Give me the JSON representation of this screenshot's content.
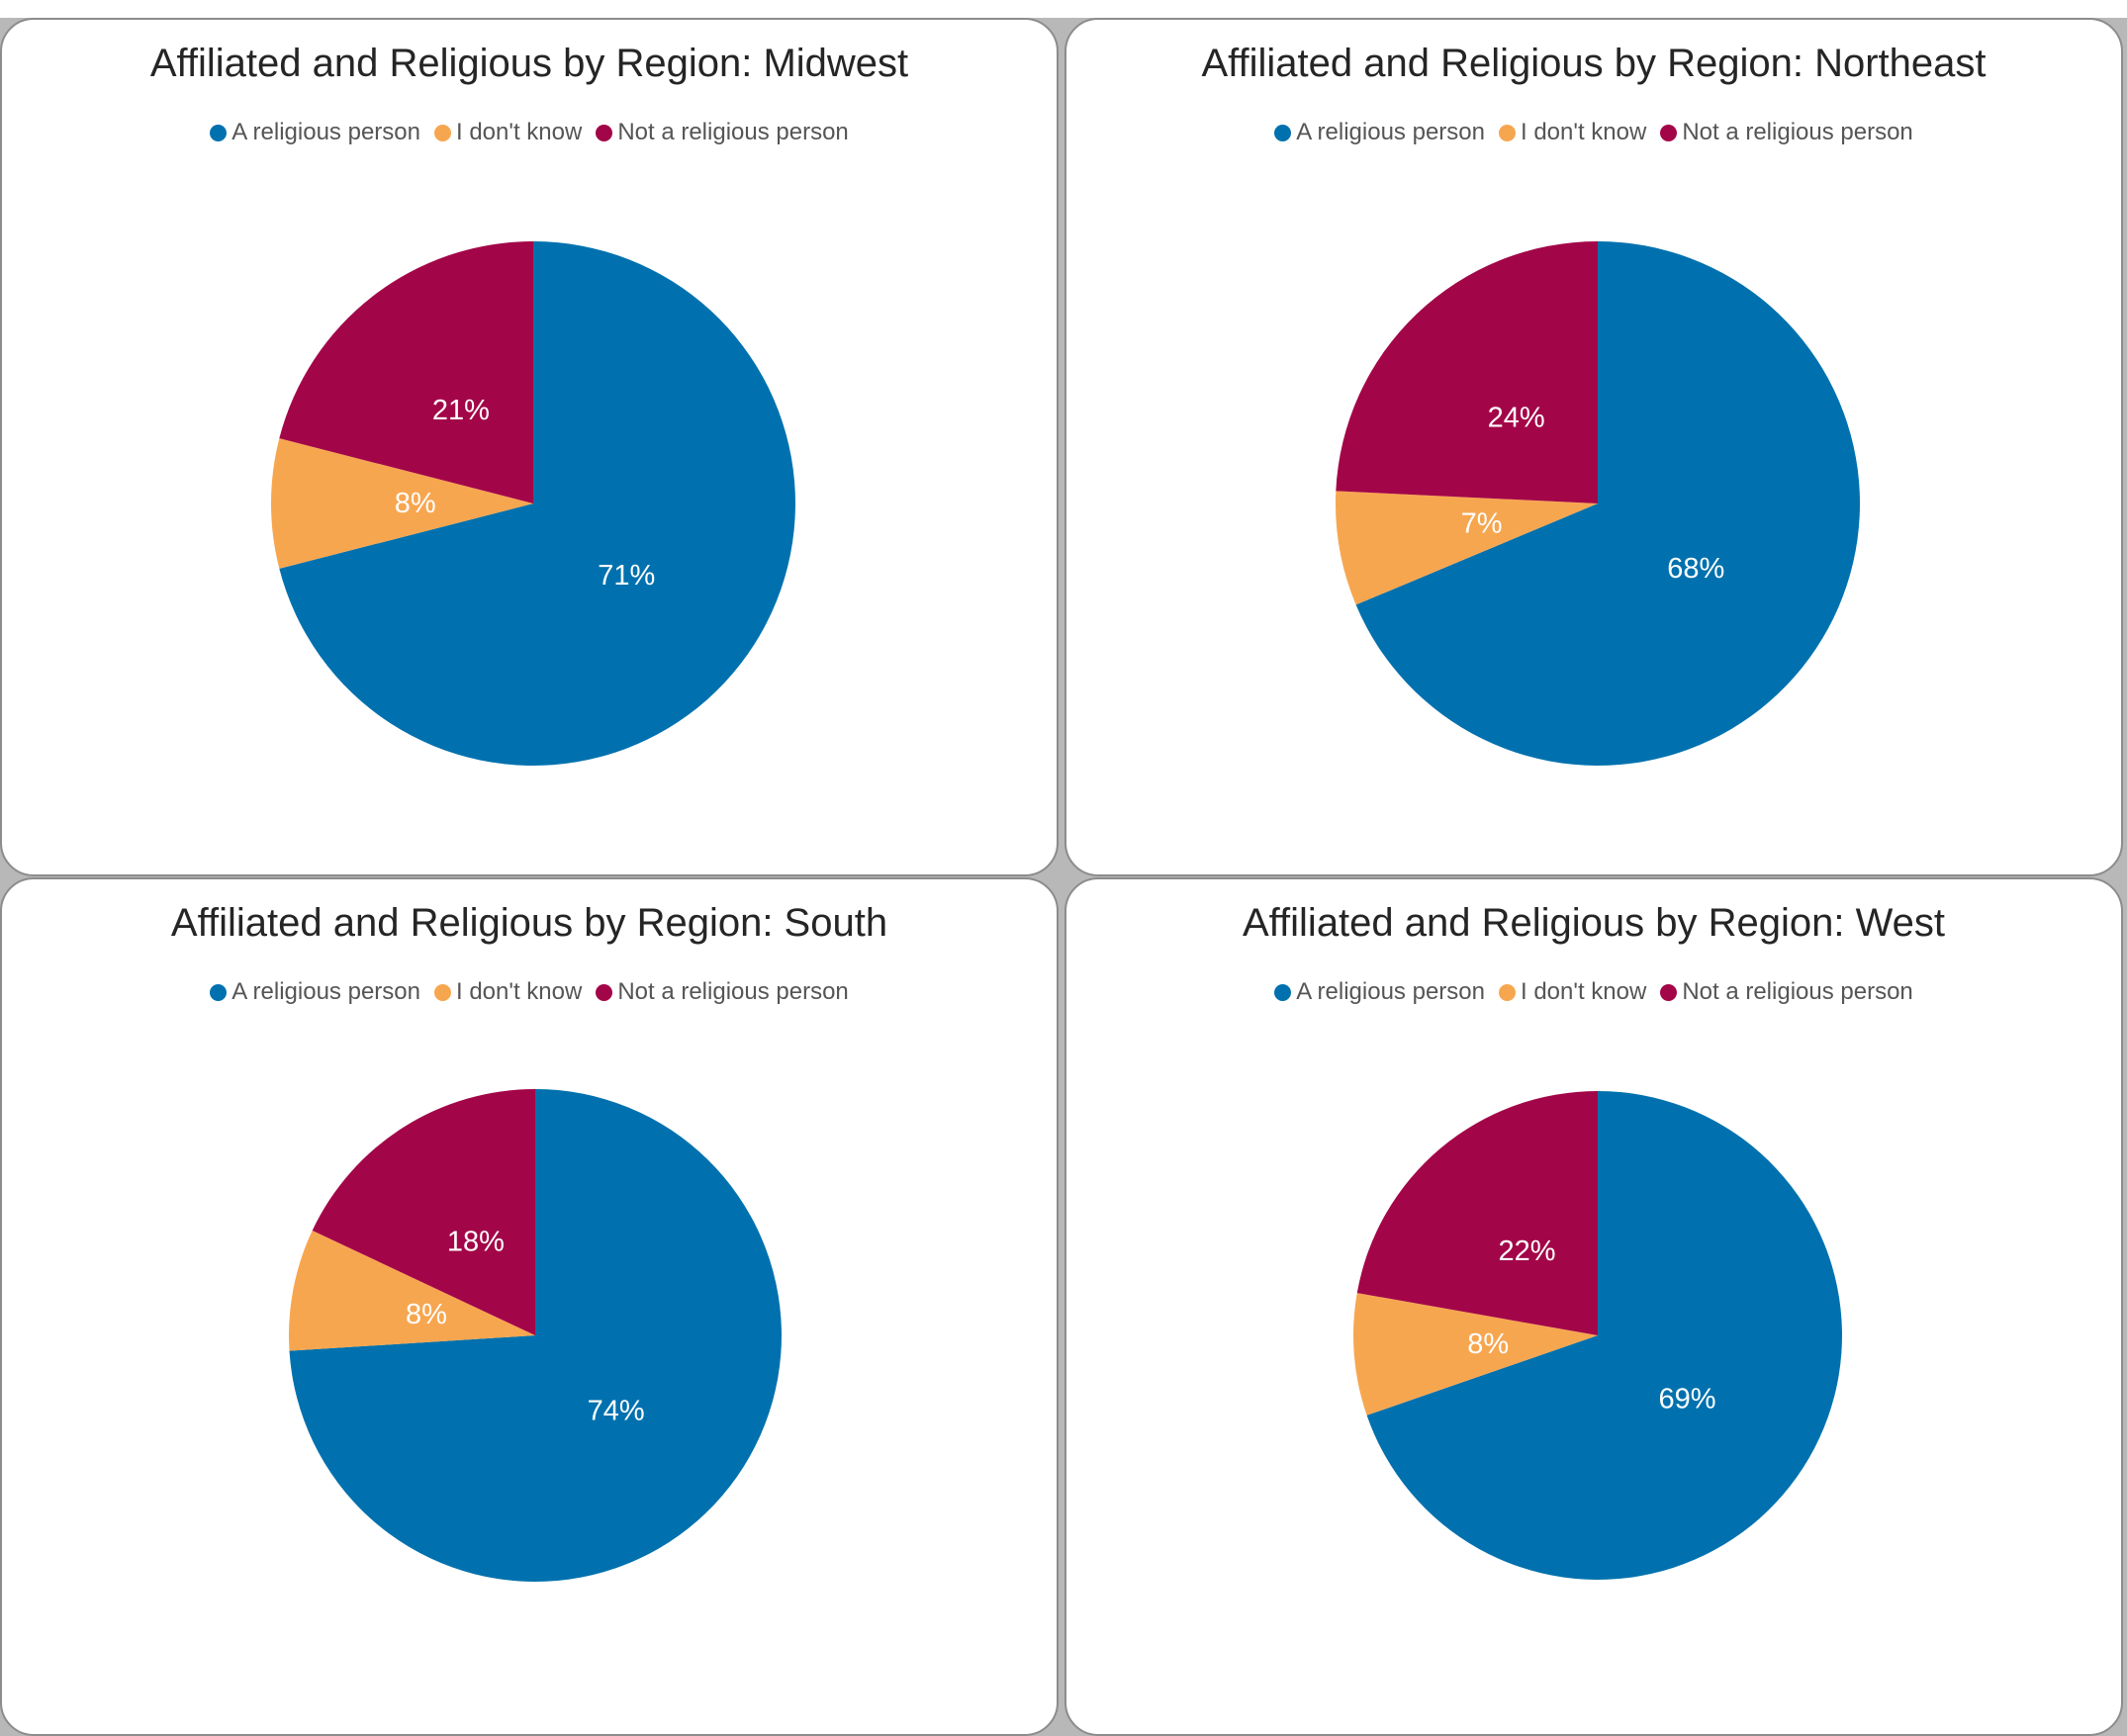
{
  "legend_items": [
    {
      "label": "A religious person",
      "color": "#0071ae"
    },
    {
      "label": "I don't know",
      "color": "#f7a650"
    },
    {
      "label": "Not a religious person",
      "color": "#a30648"
    }
  ],
  "chart_data": [
    {
      "type": "pie",
      "title": "Affiliated and Religious by Region: Midwest",
      "categories": [
        "A religious person",
        "I don't know",
        "Not a religious person"
      ],
      "values": [
        71,
        8,
        21
      ],
      "value_labels": [
        "71%",
        "8%",
        "21%"
      ],
      "colors": [
        "#0071ae",
        "#f7a650",
        "#a30648"
      ],
      "legend_position": "top"
    },
    {
      "type": "pie",
      "title": "Affiliated and Religious by Region: Northeast",
      "categories": [
        "A religious person",
        "I don't know",
        "Not a religious person"
      ],
      "values": [
        68,
        7,
        24
      ],
      "value_labels": [
        "68%",
        "7%",
        "24%"
      ],
      "colors": [
        "#0071ae",
        "#f7a650",
        "#a30648"
      ],
      "legend_position": "top"
    },
    {
      "type": "pie",
      "title": "Affiliated and Religious by Region: South",
      "categories": [
        "A religious person",
        "I don't know",
        "Not a religious person"
      ],
      "values": [
        74,
        8,
        18
      ],
      "value_labels": [
        "74%",
        "8%",
        "18%"
      ],
      "colors": [
        "#0071ae",
        "#f7a650",
        "#a30648"
      ],
      "legend_position": "top"
    },
    {
      "type": "pie",
      "title": "Affiliated and Religious by Region: West",
      "categories": [
        "A religious person",
        "I don't know",
        "Not a religious person"
      ],
      "values": [
        69,
        8,
        22
      ],
      "value_labels": [
        "69%",
        "8%",
        "22%"
      ],
      "colors": [
        "#0071ae",
        "#f7a650",
        "#a30648"
      ],
      "legend_position": "top"
    }
  ]
}
